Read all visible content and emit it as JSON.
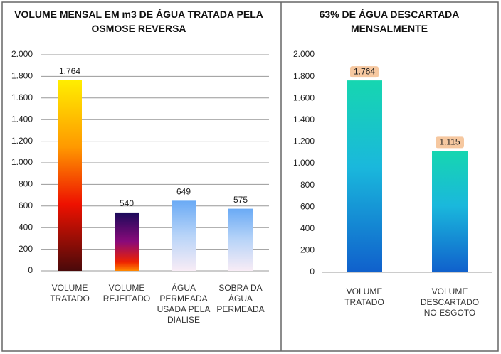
{
  "chart_data": [
    {
      "type": "bar",
      "title": "VOLUME MENSAL EM m3 DE ÁGUA TRATADA  PELA OSMOSE REVERSA",
      "categories": [
        "VOLUME TRATADO",
        "VOLUME REJEITADO",
        "ÁGUA PERMEADA USADA PELA DIALISE",
        "SOBRA DA ÁGUA PERMEADA"
      ],
      "values": [
        1764,
        540,
        649,
        575
      ],
      "value_labels": [
        "1.764",
        "540",
        "649",
        "575"
      ],
      "ylim": [
        0,
        2000
      ],
      "yticks": [
        0,
        200,
        400,
        600,
        800,
        {
          "value": 1000,
          "label": "1.000"
        },
        {
          "value": 1200,
          "label": "1.200"
        },
        {
          "value": 1400,
          "label": "1.400"
        },
        {
          "value": 1600,
          "label": "1.600"
        },
        {
          "value": 1800,
          "label": "1.800"
        },
        {
          "value": 2000,
          "label": "2.000"
        }
      ],
      "grid": true
    },
    {
      "type": "bar",
      "title": "63% DE ÁGUA  DESCARTADA MENSALMENTE",
      "categories": [
        "VOLUME TRATADO",
        "VOLUME DESCARTADO NO ESGOTO"
      ],
      "values": [
        1764,
        1115
      ],
      "value_labels": [
        "1.764",
        "1.115"
      ],
      "ylim": [
        0,
        2000
      ],
      "yticks": [
        0,
        200,
        400,
        600,
        800,
        {
          "value": 1000,
          "label": "1.000"
        },
        {
          "value": 1200,
          "label": "1.200"
        },
        {
          "value": 1400,
          "label": "1.400"
        },
        {
          "value": 1600,
          "label": "1.600"
        },
        {
          "value": 1800,
          "label": "1.800"
        },
        {
          "value": 2000,
          "label": "2.000"
        }
      ],
      "grid": false
    }
  ]
}
